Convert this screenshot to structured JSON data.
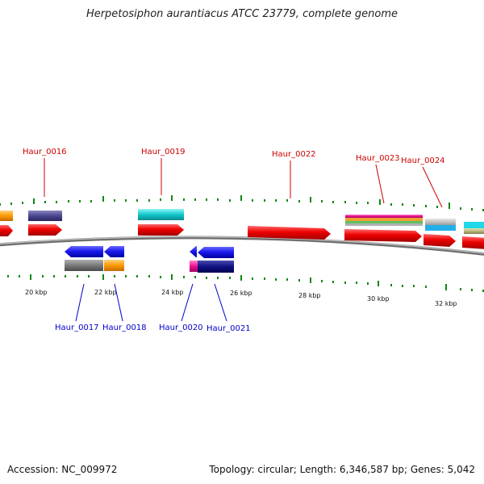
{
  "title": "Herpetosiphon aurantiacus ATCC 23779, complete genome",
  "footer": {
    "accession": "Accession: NC_009972",
    "topology": "Topology: circular; Length: 6,346,587 bp; Genes: 5,042"
  },
  "scale": {
    "labels": [
      "20 kbp",
      "22 kbp",
      "24 kbp",
      "26 kbp",
      "28 kbp",
      "30 kbp",
      "32 kbp"
    ]
  },
  "genes_top": [
    {
      "name": "Haur_0016",
      "color": "#cc0000"
    },
    {
      "name": "Haur_0019",
      "color": "#cc0000"
    },
    {
      "name": "Haur_0022",
      "color": "#cc0000"
    },
    {
      "name": "Haur_0023",
      "color": "#cc0000"
    },
    {
      "name": "Haur_0024",
      "color": "#cc0000"
    }
  ],
  "genes_bottom": [
    {
      "name": "Haur_0017",
      "color": "#0000cc"
    },
    {
      "name": "Haur_0018",
      "color": "#0000cc"
    },
    {
      "name": "Haur_0020",
      "color": "#0000cc"
    },
    {
      "name": "Haur_0021",
      "color": "#0000cc"
    }
  ],
  "colors": {
    "forward_cds": "#ee0000",
    "reverse_cds": "#1a1aee",
    "tick": "#118811",
    "backbone": "#888888"
  }
}
